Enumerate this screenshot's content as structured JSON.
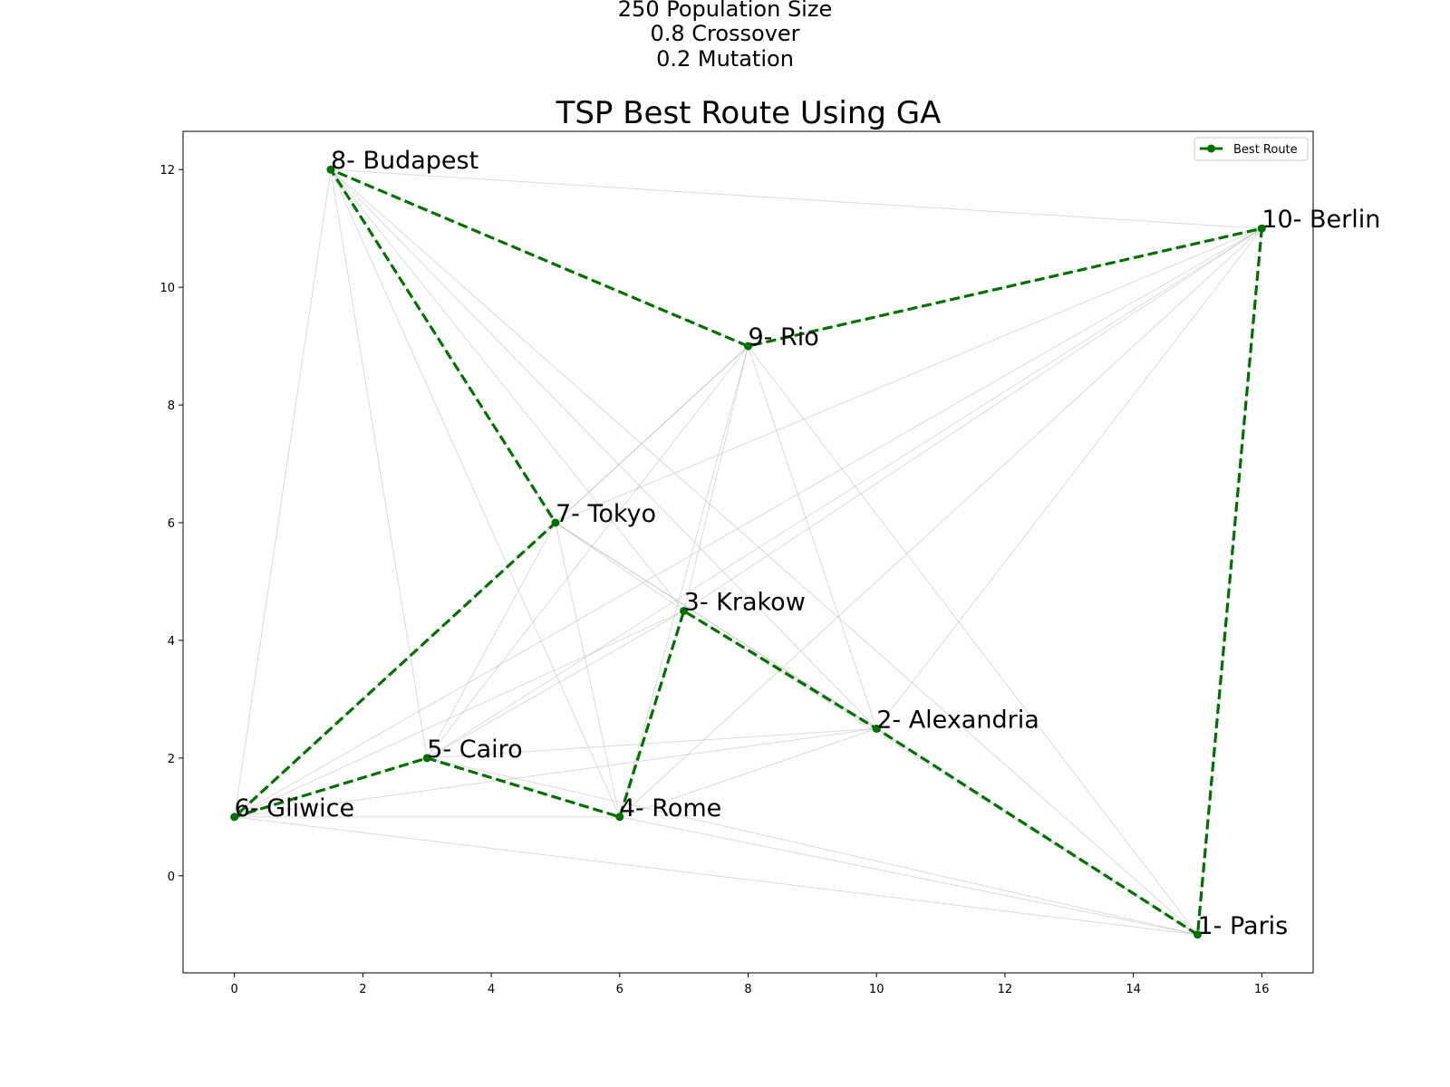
{
  "header": {
    "lines": [
      "250 Population Size",
      "0.8 Crossover",
      "0.2 Mutation"
    ]
  },
  "colors": {
    "route": "#007000",
    "all_edges": "#b8b8b8",
    "axes": "#000000",
    "legend_border": "#cccccc"
  },
  "chart_data": {
    "type": "line",
    "title": "TSP Best Route Using GA",
    "xlabel": "",
    "ylabel": "",
    "xlim": [
      -0.8,
      16.8
    ],
    "ylim": [
      -1.65,
      12.65
    ],
    "xticks": [
      0,
      2,
      4,
      6,
      8,
      10,
      12,
      14,
      16
    ],
    "yticks": [
      0,
      2,
      4,
      6,
      8,
      10,
      12
    ],
    "grid": false,
    "legend": {
      "placement": "top-right",
      "entries": [
        "Best Route"
      ]
    },
    "cities": [
      {
        "label": "1- Paris",
        "x": 15,
        "y": -1
      },
      {
        "label": "2- Alexandria",
        "x": 10,
        "y": 2.5
      },
      {
        "label": "3- Krakow",
        "x": 7,
        "y": 4.5
      },
      {
        "label": "4- Rome",
        "x": 6,
        "y": 1
      },
      {
        "label": "5- Cairo",
        "x": 3,
        "y": 2
      },
      {
        "label": "6- Gliwice",
        "x": 0,
        "y": 1
      },
      {
        "label": "7- Tokyo",
        "x": 5,
        "y": 6
      },
      {
        "label": "8- Budapest",
        "x": 1.5,
        "y": 12
      },
      {
        "label": "9- Rio",
        "x": 8,
        "y": 9
      },
      {
        "label": "10- Berlin",
        "x": 16,
        "y": 11
      }
    ],
    "series": [
      {
        "name": "Best Route",
        "style": "dashed",
        "route": [
          "1- Paris",
          "2- Alexandria",
          "3- Krakow",
          "4- Rome",
          "5- Cairo",
          "6- Gliwice",
          "7- Tokyo",
          "8- Budapest",
          "9- Rio",
          "10- Berlin",
          "1- Paris"
        ]
      }
    ]
  }
}
